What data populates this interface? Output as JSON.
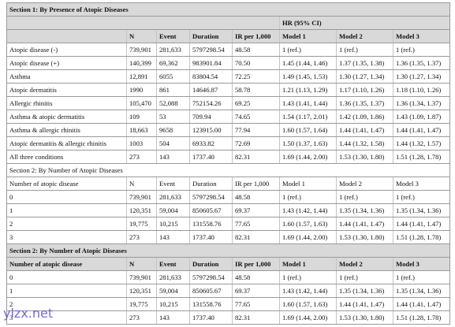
{
  "sections": [
    {
      "title": "Section 1: By Presence of Atopic Diseases",
      "header_group": "HR (95% CI)",
      "columns": [
        "N",
        "Event",
        "Duration",
        "IR per 1,000",
        "Model 1",
        "Model 2",
        "Model 3"
      ],
      "rows": [
        [
          "Atopic disease (-)",
          "739,901",
          "281,633",
          "5797298.54",
          "48.58",
          "1 (ref.)",
          "1 (ref.)",
          "1 (ref.)"
        ],
        [
          "Atopic disease (+)",
          "140,399",
          "69,362",
          "983901.84",
          "70.50",
          "1.45 (1.44, 1.46)",
          "1.37 (1.35, 1.38)",
          "1.36 (1.35, 1.37)"
        ],
        [
          "Asthma",
          "12,891",
          "6055",
          "83804.54",
          "72.25",
          "1.49 (1.45, 1.53)",
          "1.30 (1.27, 1.34)",
          "1.30 (1.27, 1.34)"
        ],
        [
          "Atopic dermatitis",
          "1990",
          "861",
          "14646.87",
          "58.78",
          "1.21 (1.13, 1.29)",
          "1.17 (1.10, 1.26)",
          "1.18 (1.10, 1.26)"
        ],
        [
          "Allergic rhinitis",
          "105,470",
          "52,088",
          "752154.26",
          "69.25",
          "1.43 (1.41, 1.44)",
          "1.36 (1.35, 1.37)",
          "1.36 (1.34, 1.37)"
        ],
        [
          "Asthma & atopic dermatitis",
          "109",
          "53",
          "709.94",
          "74.65",
          "1.54 (1.17, 2.01)",
          "1.42 (1.09, 1.86)",
          "1.43 (1.09, 1.87)"
        ],
        [
          "Asthma & allergic rhinitis",
          "18,663",
          "9658",
          "123915.00",
          "77.94",
          "1.60 (1.57, 1.64)",
          "1.44 (1.41, 1.47)",
          "1.44 (1.41, 1.47)"
        ],
        [
          "Atopic dermatitis & allergic rhinitis",
          "1003",
          "504",
          "6933.82",
          "72.69",
          "1.50 (1.37, 1.63)",
          "1.44 (1.32, 1.58)",
          "1.44 (1.32, 1.57)"
        ],
        [
          "All three conditions",
          "273",
          "143",
          "1737.40",
          "82.31",
          "1.69 (1.44, 2.00)",
          "1.53 (1.30, 1.80)",
          "1.51 (1.28, 1.78)"
        ]
      ]
    },
    {
      "title": "Section 2: By Number of Atopic Diseases",
      "columns": [
        "Number of atopic disease",
        "N",
        "Event",
        "Duration",
        "IR per 1,000",
        "Model 1",
        "Model 2",
        "Model 3"
      ],
      "rows": [
        [
          "0",
          "739,901",
          "281,633",
          "5797298.54",
          "48.58",
          "1 (ref.)",
          "1 (ref.)",
          "1 (ref.)"
        ],
        [
          "1",
          "120,351",
          "59,004",
          "850605.67",
          "69.37",
          "1.43 (1.42, 1.44)",
          "1.35 (1.34, 1.36)",
          "1.35 (1.34, 1.36)"
        ],
        [
          "2",
          "19,775",
          "10,215",
          "131558.76",
          "77.65",
          "1.60 (1.57, 1.63)",
          "1.44 (1.41, 1.47)",
          "1.44 (1.41, 1.47)"
        ],
        [
          "3",
          "273",
          "143",
          "1737.40",
          "82.31",
          "1.69 (1.44, 2.00)",
          "1.53 (1.30, 1.80)",
          "1.51 (1.28, 1.78)"
        ]
      ]
    },
    {
      "title": "Section 2: By Number of Atopic Diseases",
      "columns": [
        "Number of atopic disease",
        "N",
        "Event",
        "Duration",
        "IR per 1,000",
        "Model 1",
        "Model 2",
        "Model 3"
      ],
      "rows": [
        [
          "0",
          "739,901",
          "281,633",
          "5797298.54",
          "48.58",
          "1 (ref.)",
          "1 (ref.)",
          "1 (ref.)"
        ],
        [
          "1",
          "120,351",
          "59,004",
          "850605.67",
          "69.37",
          "1.43 (1.42, 1.44)",
          "1.35 (1.34, 1.36)",
          "1.35 (1.34, 1.36)"
        ],
        [
          "2",
          "19,775",
          "10,215",
          "131558.76",
          "77.65",
          "1.60 (1.57, 1.63)",
          "1.44 (1.41, 1.47)",
          "1.44 (1.41, 1.47)"
        ],
        [
          "3",
          "273",
          "143",
          "1737.40",
          "82.31",
          "1.69 (1.44, 2.00)",
          "1.53 (1.30, 1.80)",
          "1.51 (1.28, 1.78)"
        ]
      ]
    }
  ],
  "watermark": "ylzx.net"
}
